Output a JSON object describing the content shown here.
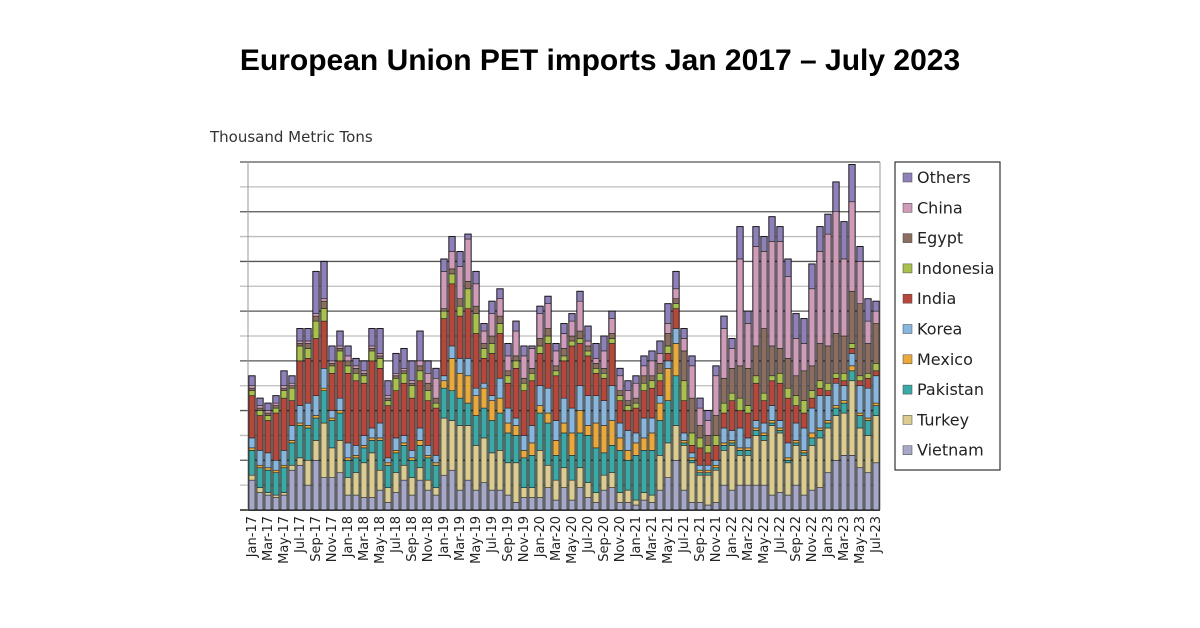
{
  "title": "European Union PET imports Jan 2017 – July 2023",
  "chart_data": {
    "type": "bar",
    "stacked": true,
    "title": "European Union PET imports Jan 2017 – July 2023",
    "ylabel": "Thousand Metric Tons",
    "xlabel": "",
    "ylim": [
      0,
      14
    ],
    "y_tick_labels_shown": false,
    "grid": true,
    "legend_position": "right",
    "categories": [
      "Jan-17",
      "Feb-17",
      "Mar-17",
      "Apr-17",
      "May-17",
      "Jun-17",
      "Jul-17",
      "Aug-17",
      "Sep-17",
      "Oct-17",
      "Nov-17",
      "Dec-17",
      "Jan-18",
      "Feb-18",
      "Mar-18",
      "Apr-18",
      "May-18",
      "Jun-18",
      "Jul-18",
      "Aug-18",
      "Sep-18",
      "Oct-18",
      "Nov-18",
      "Dec-18",
      "Jan-19",
      "Feb-19",
      "Mar-19",
      "Apr-19",
      "May-19",
      "Jun-19",
      "Jul-19",
      "Aug-19",
      "Sep-19",
      "Oct-19",
      "Nov-19",
      "Dec-19",
      "Jan-20",
      "Feb-20",
      "Mar-20",
      "Apr-20",
      "May-20",
      "Jun-20",
      "Jul-20",
      "Aug-20",
      "Sep-20",
      "Oct-20",
      "Nov-20",
      "Dec-20",
      "Jan-21",
      "Feb-21",
      "Mar-21",
      "Apr-21",
      "May-21",
      "Jun-21",
      "Jul-21",
      "Aug-21",
      "Sep-21",
      "Oct-21",
      "Nov-21",
      "Dec-21",
      "Jan-22",
      "Feb-22",
      "Mar-22",
      "Apr-22",
      "May-22",
      "Jun-22",
      "Jul-22",
      "Aug-22",
      "Sep-22",
      "Oct-22",
      "Nov-22",
      "Dec-22",
      "Jan-23",
      "Feb-23",
      "Mar-23",
      "Apr-23",
      "May-23",
      "Jun-23",
      "Jul-23"
    ],
    "tick_labels": [
      "Jan-17",
      "Mar-17",
      "May-17",
      "Jul-17",
      "Sep-17",
      "Nov-17",
      "Jan-18",
      "Mar-18",
      "May-18",
      "Jul-18",
      "Sep-18",
      "Nov-18",
      "Jan-19",
      "Mar-19",
      "May-19",
      "Jul-19",
      "Sep-19",
      "Nov-19",
      "Jan-20",
      "Mar-20",
      "May-20",
      "Jul-20",
      "Sep-20",
      "Nov-20",
      "Jan-21",
      "Mar-21",
      "May-21",
      "Jul-21",
      "Sep-21",
      "Nov-21",
      "Jan-22",
      "Mar-22",
      "May-22",
      "Jul-22",
      "Sep-22",
      "Nov-22",
      "Jan-23",
      "Mar-23",
      "May-23",
      "Jul-23"
    ],
    "series": [
      {
        "name": "Vietnam",
        "color": "#a6a8c8",
        "values": [
          1.2,
          0.7,
          0.6,
          0.5,
          0.6,
          1.6,
          1.8,
          1.0,
          2.0,
          1.3,
          1.3,
          1.5,
          0.6,
          0.6,
          0.5,
          0.5,
          0.8,
          0.3,
          0.7,
          1.2,
          0.6,
          1.2,
          0.8,
          0.6,
          1.4,
          1.6,
          0.8,
          1.2,
          0.8,
          1.1,
          0.8,
          0.8,
          0.6,
          0.3,
          0.5,
          0.5,
          0.5,
          0.9,
          0.4,
          0.9,
          0.4,
          0.9,
          0.5,
          0.3,
          0.8,
          0.9,
          0.3,
          0.3,
          0.2,
          0.4,
          0.3,
          0.8,
          1.3,
          2.0,
          0.8,
          0.3,
          0.3,
          0.2,
          0.3,
          1.0,
          0.8,
          1.0,
          1.0,
          1.0,
          1.0,
          0.6,
          0.7,
          0.6,
          1.0,
          0.6,
          0.8,
          0.9,
          1.5,
          2.0,
          2.2,
          2.2,
          1.7,
          1.5,
          1.9
        ]
      },
      {
        "name": "Turkey",
        "color": "#dacd8f",
        "values": [
          0.2,
          0.2,
          0.1,
          0.1,
          0.1,
          0.2,
          0.3,
          1.0,
          0.8,
          2.2,
          1.2,
          1.3,
          0.7,
          0.9,
          1.4,
          1.8,
          0.8,
          0.6,
          0.8,
          0.6,
          0.7,
          0.5,
          0.4,
          0.3,
          2.3,
          2.0,
          2.6,
          2.2,
          1.8,
          1.8,
          1.5,
          1.6,
          1.3,
          1.6,
          0.4,
          0.4,
          1.9,
          0.9,
          0.8,
          0.8,
          0.8,
          0.8,
          0.6,
          0.4,
          0.6,
          0.6,
          0.4,
          0.5,
          0.2,
          0.3,
          0.3,
          1.4,
          1.4,
          1.4,
          1.8,
          1.6,
          1.1,
          1.2,
          1.3,
          1.4,
          1.8,
          1.2,
          1.2,
          2.0,
          1.8,
          2.8,
          2.4,
          1.3,
          1.6,
          1.6,
          1.8,
          2.0,
          1.8,
          1.8,
          1.7,
          3.0,
          1.6,
          1.5,
          1.9
        ]
      },
      {
        "name": "Pakistan",
        "color": "#3aaaa6",
        "values": [
          1.0,
          0.8,
          0.9,
          0.9,
          1.0,
          0.9,
          1.3,
          1.3,
          0.9,
          1.3,
          1.1,
          1.1,
          0.7,
          0.6,
          0.6,
          0.5,
          1.2,
          0.9,
          0.8,
          0.8,
          0.7,
          0.9,
          0.9,
          0.9,
          1.2,
          1.2,
          1.1,
          0.9,
          1.2,
          1.2,
          1.3,
          1.5,
          1.2,
          1.1,
          1.2,
          1.3,
          1.5,
          1.7,
          1.0,
          1.4,
          1.0,
          1.4,
          1.9,
          1.8,
          0.9,
          1.1,
          1.7,
          1.2,
          1.8,
          1.7,
          1.8,
          1.4,
          1.7,
          2.0,
          0.1,
          0.1,
          0.1,
          0.1,
          0.1,
          0.2,
          0.1,
          0.2,
          0.2,
          0.2,
          0.2,
          0.1,
          0.1,
          0.1,
          0.1,
          0.1,
          0.3,
          0.3,
          0.2,
          0.3,
          0.4,
          0.4,
          0.5,
          0.6,
          0.4
        ]
      },
      {
        "name": "Mexico",
        "color": "#eaa93b",
        "values": [
          0.1,
          0.1,
          0.1,
          0.1,
          0.1,
          0.1,
          0.1,
          0.1,
          0.1,
          0.1,
          0.1,
          0.1,
          0.1,
          0.1,
          0.1,
          0.1,
          0.1,
          0.1,
          0.1,
          0.1,
          0.1,
          0.2,
          0.1,
          0.1,
          0.3,
          1.3,
          1.0,
          1.1,
          0.8,
          0.8,
          0.8,
          0.6,
          0.4,
          0.4,
          0.3,
          0.5,
          0.3,
          0.4,
          0.6,
          0.4,
          0.9,
          0.9,
          0.4,
          1.0,
          1.1,
          1.0,
          0.5,
          0.4,
          0.5,
          0.5,
          0.7,
          0.7,
          1.3,
          1.3,
          0.1,
          0.1,
          0.1,
          0.1,
          0.1,
          0.1,
          0.1,
          0.1,
          0.1,
          0.1,
          0.1,
          0.1,
          0.1,
          0.1,
          0.1,
          0.1,
          0.2,
          0.1,
          0.1,
          0.1,
          0.1,
          0.2,
          0.1,
          0.1,
          0.1
        ]
      },
      {
        "name": "Korea",
        "color": "#87b6de",
        "values": [
          0.4,
          0.6,
          0.6,
          0.4,
          0.6,
          0.6,
          0.7,
          0.9,
          0.8,
          0.8,
          0.3,
          0.5,
          0.6,
          0.4,
          0.4,
          0.4,
          0.6,
          0.2,
          0.5,
          0.3,
          0.3,
          0.5,
          0.4,
          0.3,
          0.2,
          0.5,
          0.6,
          0.7,
          0.3,
          0.2,
          0.2,
          0.8,
          0.6,
          0.3,
          0.6,
          0.7,
          0.8,
          1.0,
          0.8,
          1.0,
          1.0,
          1.0,
          1.2,
          1.1,
          1.0,
          1.4,
          0.6,
          0.8,
          0.4,
          0.8,
          0.6,
          0.3,
          0.3,
          0.6,
          0.3,
          0.2,
          0.2,
          0.2,
          0.2,
          0.6,
          0.4,
          0.8,
          0.4,
          0.3,
          0.4,
          0.6,
          0.3,
          0.6,
          0.7,
          0.9,
          1.0,
          1.3,
          1.0,
          0.9,
          0.6,
          0.5,
          1.1,
          1.2,
          1.1
        ]
      },
      {
        "name": "India",
        "color": "#b8473b",
        "values": [
          1.7,
          1.4,
          1.3,
          1.9,
          2.1,
          1.0,
          1.8,
          1.8,
          2.3,
          1.9,
          1.5,
          1.5,
          2.8,
          2.6,
          2.1,
          2.7,
          2.2,
          2.1,
          1.9,
          2.1,
          2.1,
          1.9,
          1.8,
          1.9,
          2.3,
          2.5,
          1.7,
          2.0,
          2.2,
          1.0,
          1.7,
          1.8,
          1.0,
          2.0,
          1.8,
          1.8,
          1.3,
          1.8,
          1.8,
          1.5,
          2.5,
          1.7,
          1.6,
          0.9,
          0.9,
          1.7,
          0.9,
          0.8,
          1.0,
          1.1,
          1.2,
          0.6,
          0.3,
          0.8,
          1.3,
          0.3,
          0.7,
          0.5,
          0.6,
          0.6,
          1.2,
          0.7,
          1.0,
          1.5,
          0.9,
          1.0,
          1.5,
          1.8,
          0.7,
          0.6,
          0.4,
          0.3,
          0.2,
          0.2,
          0.2,
          0.2,
          0.2,
          0.4,
          0.2
        ]
      },
      {
        "name": "Indonesia",
        "color": "#a9c04b",
        "values": [
          0.2,
          0.2,
          0.2,
          0.2,
          0.3,
          0.5,
          0.6,
          0.4,
          0.7,
          0.5,
          0.3,
          0.4,
          0.3,
          0.3,
          0.3,
          0.4,
          0.4,
          0.2,
          0.5,
          0.4,
          0.5,
          0.4,
          0.4,
          0.2,
          0.3,
          0.4,
          0.4,
          0.8,
          0.8,
          0.4,
          0.4,
          0.4,
          0.3,
          0.3,
          0.3,
          0.3,
          0.3,
          0.3,
          0.2,
          0.2,
          0.2,
          0.2,
          0.2,
          0.2,
          0.2,
          0.2,
          0.2,
          0.2,
          0.2,
          0.3,
          0.3,
          0.3,
          0.3,
          0.2,
          0.8,
          0.5,
          0.4,
          0.3,
          0.4,
          0.4,
          0.3,
          0.5,
          0.3,
          0.3,
          0.3,
          0.2,
          0.4,
          0.4,
          0.4,
          0.5,
          0.3,
          0.3,
          0.3,
          0.2,
          0.3,
          0.2,
          0.2,
          0.2,
          0.3
        ]
      },
      {
        "name": "Egypt",
        "color": "#8b6e60",
        "values": [
          0.1,
          0.1,
          0.1,
          0.1,
          0.1,
          0.1,
          0.1,
          0.2,
          0.2,
          0.3,
          0.1,
          0.1,
          0.2,
          0.2,
          0.1,
          0.1,
          0.1,
          0.1,
          0.1,
          0.1,
          0.1,
          0.2,
          0.3,
          0.2,
          0.1,
          0.2,
          0.3,
          0.3,
          0.3,
          0.2,
          0.3,
          0.3,
          0.2,
          0.2,
          0.2,
          0.2,
          0.3,
          0.3,
          0.2,
          0.3,
          0.2,
          0.3,
          0.2,
          0.2,
          0.2,
          0.2,
          0.2,
          0.2,
          0.2,
          0.3,
          0.2,
          0.4,
          0.5,
          0.2,
          1.2,
          1.4,
          0.5,
          0.4,
          0.8,
          1.0,
          1.0,
          1.3,
          1.5,
          1.2,
          2.6,
          1.2,
          1.0,
          1.2,
          0.8,
          1.2,
          1.0,
          1.5,
          1.5,
          1.6,
          1.5,
          2.1,
          2.9,
          1.2,
          1.6
        ]
      },
      {
        "name": "China",
        "color": "#d09bb9",
        "values": [
          0.1,
          0.1,
          0.1,
          0.1,
          0.1,
          0.1,
          0.1,
          0.1,
          0.1,
          0.1,
          0.1,
          0.1,
          0.2,
          0.1,
          0.1,
          0.1,
          0.1,
          0.1,
          0.1,
          0.1,
          0.1,
          0.2,
          0.4,
          0.8,
          1.5,
          0.7,
          1.3,
          1.7,
          0.9,
          0.5,
          0.9,
          0.7,
          0.6,
          1.0,
          0.9,
          0.8,
          1.0,
          1.0,
          0.6,
          0.6,
          0.6,
          1.2,
          0.2,
          0.2,
          0.7,
          0.6,
          0.6,
          0.4,
          0.6,
          0.4,
          0.6,
          0.4,
          0.4,
          0.4,
          0.5,
          1.3,
          0.7,
          0.6,
          1.6,
          2.0,
          0.8,
          4.3,
          1.8,
          4.0,
          3.1,
          4.2,
          4.3,
          3.3,
          1.5,
          1.1,
          3.1,
          3.7,
          4.5,
          4.9,
          3.1,
          3.6,
          1.7,
          0.9,
          0.5
        ]
      },
      {
        "name": "Others",
        "color": "#8f80b9",
        "values": [
          0.4,
          0.3,
          0.3,
          0.3,
          0.6,
          0.3,
          0.5,
          0.5,
          1.7,
          1.5,
          0.6,
          0.6,
          0.4,
          0.3,
          0.4,
          0.7,
          1.0,
          0.6,
          0.8,
          0.8,
          0.8,
          1.2,
          0.5,
          0.4,
          0.5,
          0.6,
          0.6,
          0.2,
          0.5,
          0.3,
          0.5,
          0.4,
          0.5,
          0.4,
          0.4,
          0.1,
          0.3,
          0.3,
          0.3,
          0.4,
          0.3,
          0.4,
          0.6,
          0.6,
          0.6,
          0.3,
          0.3,
          0.4,
          0.3,
          0.4,
          0.4,
          0.5,
          0.8,
          0.7,
          0.4,
          0.4,
          0.4,
          0.4,
          0.4,
          0.5,
          0.4,
          1.3,
          0.5,
          0.8,
          0.6,
          1.0,
          0.6,
          0.7,
          1.0,
          1.0,
          1.0,
          1.0,
          0.8,
          1.2,
          1.5,
          1.5,
          0.6,
          0.9,
          0.4
        ]
      }
    ]
  }
}
